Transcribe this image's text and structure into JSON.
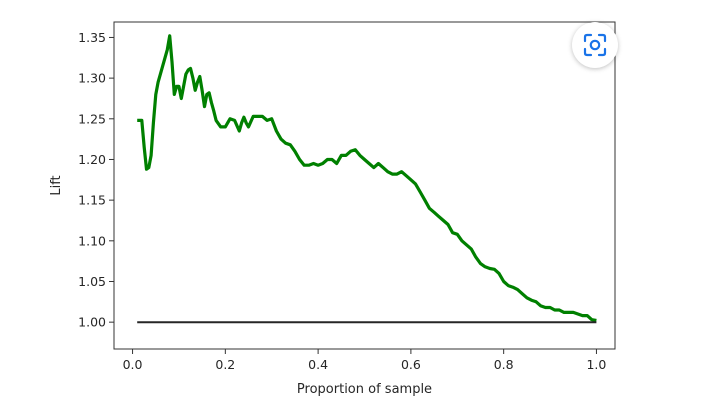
{
  "chart_data": {
    "type": "line",
    "xlabel": "Proportion of sample",
    "ylabel": "Lift",
    "xlim": [
      -0.04,
      1.04
    ],
    "ylim": [
      0.967,
      1.369
    ],
    "x_ticks": [
      "0.0",
      "0.2",
      "0.4",
      "0.6",
      "0.8",
      "1.0"
    ],
    "y_ticks": [
      "1.00",
      "1.05",
      "1.10",
      "1.15",
      "1.20",
      "1.25",
      "1.30",
      "1.35"
    ],
    "grid": false,
    "series": [
      {
        "color": "#008000",
        "x": [
          0.01,
          0.02,
          0.025,
          0.03,
          0.035,
          0.04,
          0.045,
          0.05,
          0.055,
          0.06,
          0.065,
          0.07,
          0.075,
          0.08,
          0.085,
          0.09,
          0.095,
          0.1,
          0.105,
          0.11,
          0.115,
          0.12,
          0.125,
          0.13,
          0.135,
          0.14,
          0.145,
          0.15,
          0.155,
          0.16,
          0.165,
          0.17,
          0.175,
          0.18,
          0.19,
          0.2,
          0.21,
          0.22,
          0.23,
          0.235,
          0.24,
          0.245,
          0.25,
          0.26,
          0.27,
          0.28,
          0.29,
          0.3,
          0.31,
          0.32,
          0.33,
          0.34,
          0.35,
          0.36,
          0.37,
          0.38,
          0.39,
          0.4,
          0.41,
          0.42,
          0.43,
          0.44,
          0.45,
          0.46,
          0.47,
          0.48,
          0.49,
          0.5,
          0.51,
          0.52,
          0.53,
          0.54,
          0.55,
          0.56,
          0.57,
          0.58,
          0.59,
          0.6,
          0.61,
          0.62,
          0.63,
          0.64,
          0.65,
          0.66,
          0.67,
          0.68,
          0.69,
          0.7,
          0.71,
          0.72,
          0.73,
          0.74,
          0.75,
          0.76,
          0.77,
          0.78,
          0.79,
          0.8,
          0.81,
          0.82,
          0.83,
          0.84,
          0.85,
          0.86,
          0.87,
          0.88,
          0.89,
          0.9,
          0.91,
          0.92,
          0.93,
          0.94,
          0.95,
          0.96,
          0.97,
          0.98,
          0.99,
          1.0
        ],
        "values": [
          1.248,
          1.248,
          1.215,
          1.188,
          1.19,
          1.205,
          1.245,
          1.28,
          1.295,
          1.305,
          1.315,
          1.325,
          1.335,
          1.352,
          1.32,
          1.28,
          1.29,
          1.29,
          1.275,
          1.29,
          1.305,
          1.31,
          1.312,
          1.3,
          1.285,
          1.295,
          1.302,
          1.285,
          1.265,
          1.28,
          1.282,
          1.27,
          1.26,
          1.248,
          1.24,
          1.24,
          1.25,
          1.248,
          1.235,
          1.245,
          1.252,
          1.245,
          1.24,
          1.253,
          1.253,
          1.253,
          1.248,
          1.25,
          1.235,
          1.225,
          1.22,
          1.218,
          1.21,
          1.2,
          1.193,
          1.193,
          1.195,
          1.193,
          1.195,
          1.2,
          1.2,
          1.195,
          1.205,
          1.205,
          1.21,
          1.212,
          1.205,
          1.2,
          1.195,
          1.19,
          1.195,
          1.19,
          1.185,
          1.182,
          1.182,
          1.185,
          1.18,
          1.175,
          1.17,
          1.16,
          1.15,
          1.14,
          1.135,
          1.13,
          1.125,
          1.12,
          1.11,
          1.108,
          1.1,
          1.095,
          1.09,
          1.08,
          1.072,
          1.068,
          1.066,
          1.065,
          1.06,
          1.05,
          1.045,
          1.043,
          1.04,
          1.035,
          1.03,
          1.027,
          1.025,
          1.02,
          1.018,
          1.018,
          1.015,
          1.015,
          1.012,
          1.012,
          1.012,
          1.01,
          1.008,
          1.008,
          1.003,
          1.002
        ]
      },
      {
        "color": "#262626",
        "x": [
          0.01,
          1.0
        ],
        "values": [
          1.0,
          1.0
        ]
      }
    ]
  },
  "ui": {
    "lens_icon": "google-lens-icon"
  }
}
